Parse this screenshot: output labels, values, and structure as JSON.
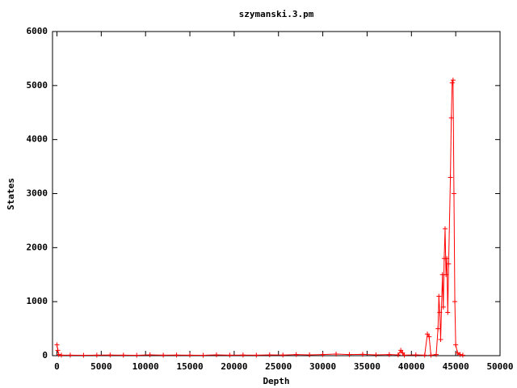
{
  "chart_data": {
    "type": "line",
    "title": "szymanski.3.pm",
    "x_label": "Depth",
    "y_label": "States",
    "x": [
      0,
      100,
      200,
      500,
      1500,
      3000,
      4500,
      6000,
      7500,
      9000,
      10500,
      12000,
      13500,
      15000,
      16500,
      18000,
      19500,
      21000,
      22500,
      24000,
      25500,
      27000,
      28500,
      30000,
      31500,
      33000,
      34500,
      36000,
      37500,
      38500,
      38800,
      39000,
      39200,
      40500,
      41500,
      41800,
      42000,
      42200,
      42800,
      43000,
      43100,
      43200,
      43300,
      43500,
      43600,
      43700,
      43800,
      43900,
      44000,
      44100,
      44200,
      44400,
      44500,
      44600,
      44700,
      44800,
      44900,
      45000,
      45200,
      45500,
      45800
    ],
    "values": [
      200,
      100,
      20,
      10,
      10,
      8,
      10,
      12,
      10,
      8,
      15,
      10,
      12,
      10,
      8,
      15,
      10,
      12,
      10,
      15,
      12,
      20,
      15,
      20,
      30,
      20,
      25,
      15,
      20,
      15,
      100,
      50,
      10,
      15,
      10,
      400,
      350,
      10,
      20,
      500,
      1100,
      800,
      300,
      1500,
      900,
      1800,
      2350,
      1500,
      1800,
      800,
      1700,
      3300,
      4400,
      5050,
      5100,
      3000,
      1000,
      200,
      50,
      20,
      10
    ],
    "color": "#ff0000",
    "xlim": [
      -500,
      50000
    ],
    "xticks": [
      0,
      5000,
      10000,
      15000,
      20000,
      25000,
      30000,
      35000,
      40000,
      45000,
      50000
    ],
    "ylim": [
      0,
      6000
    ],
    "yticks": [
      0,
      1000,
      2000,
      3000,
      4000,
      5000,
      6000
    ]
  }
}
